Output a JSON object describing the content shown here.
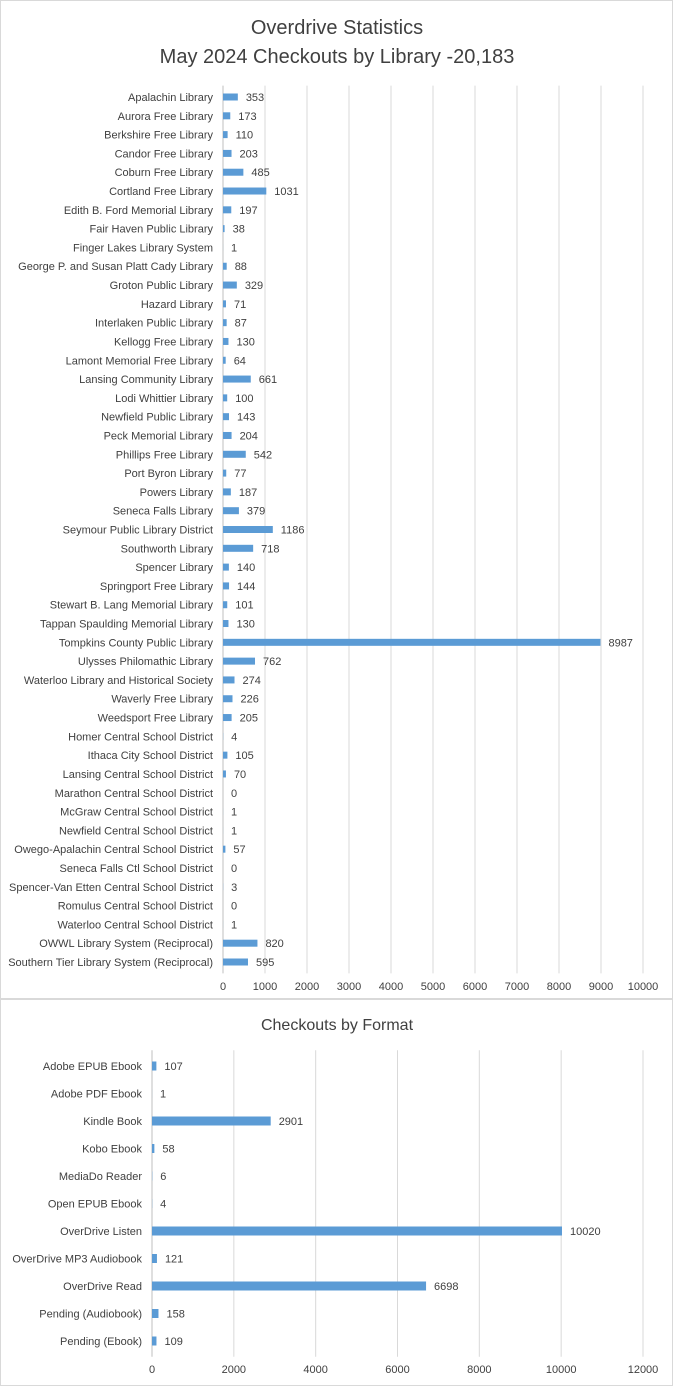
{
  "chart_data": [
    {
      "type": "bar",
      "orientation": "horizontal",
      "title": "Overdrive Statistics",
      "subtitle": "May 2024 Checkouts by Library -20,183",
      "xlim": [
        0,
        10000
      ],
      "ticks": [
        0,
        1000,
        2000,
        3000,
        4000,
        5000,
        6000,
        7000,
        8000,
        9000,
        10000
      ],
      "grid": true,
      "legend": "none",
      "bar_color": "#5b9bd5",
      "categories": [
        "Apalachin Library",
        "Aurora Free Library",
        "Berkshire Free Library",
        "Candor Free Library",
        "Coburn Free Library",
        "Cortland Free Library",
        "Edith B. Ford Memorial Library",
        "Fair Haven Public Library",
        "Finger Lakes Library System",
        "George P. and Susan Platt Cady Library",
        "Groton Public Library",
        "Hazard Library",
        "Interlaken Public Library",
        "Kellogg Free Library",
        "Lamont Memorial Free Library",
        "Lansing Community Library",
        "Lodi Whittier Library",
        "Newfield Public Library",
        "Peck Memorial Library",
        "Phillips Free Library",
        "Port Byron Library",
        "Powers Library",
        "Seneca Falls Library",
        "Seymour Public Library District",
        "Southworth Library",
        "Spencer Library",
        "Springport Free Library",
        "Stewart B. Lang Memorial Library",
        "Tappan Spaulding Memorial Library",
        "Tompkins County Public Library",
        "Ulysses Philomathic Library",
        "Waterloo Library and Historical Society",
        "Waverly Free Library",
        "Weedsport Free Library",
        "Homer Central School District",
        "Ithaca City School District",
        "Lansing Central School District",
        "Marathon Central School District",
        "McGraw Central School District",
        "Newfield Central School District",
        "Owego-Apalachin Central School District",
        "Seneca Falls Ctl School District",
        "Spencer-Van Etten Central School District",
        "Romulus Central School District",
        "Waterloo Central School District",
        "OWWL Library System (Reciprocal)",
        "Southern Tier Library System (Reciprocal)"
      ],
      "values": [
        353,
        173,
        110,
        203,
        485,
        1031,
        197,
        38,
        1,
        88,
        329,
        71,
        87,
        130,
        64,
        661,
        100,
        143,
        204,
        542,
        77,
        187,
        379,
        1186,
        718,
        140,
        144,
        101,
        130,
        8987,
        762,
        274,
        226,
        205,
        4,
        105,
        70,
        0,
        1,
        1,
        57,
        0,
        3,
        0,
        1,
        820,
        595
      ]
    },
    {
      "type": "bar",
      "orientation": "horizontal",
      "title": "Checkouts by Format",
      "xlim": [
        0,
        12000
      ],
      "ticks": [
        0,
        2000,
        4000,
        6000,
        8000,
        10000,
        12000
      ],
      "grid": true,
      "legend": "none",
      "bar_color": "#5b9bd5",
      "categories": [
        "Adobe EPUB Ebook",
        "Adobe PDF Ebook",
        "Kindle Book",
        "Kobo Ebook",
        "MediaDo Reader",
        "Open EPUB Ebook",
        "OverDrive Listen",
        "OverDrive MP3 Audiobook",
        "OverDrive Read",
        "Pending (Audiobook)",
        "Pending (Ebook)"
      ],
      "values": [
        107,
        1,
        2901,
        58,
        6,
        4,
        10020,
        121,
        6698,
        158,
        109
      ]
    }
  ]
}
